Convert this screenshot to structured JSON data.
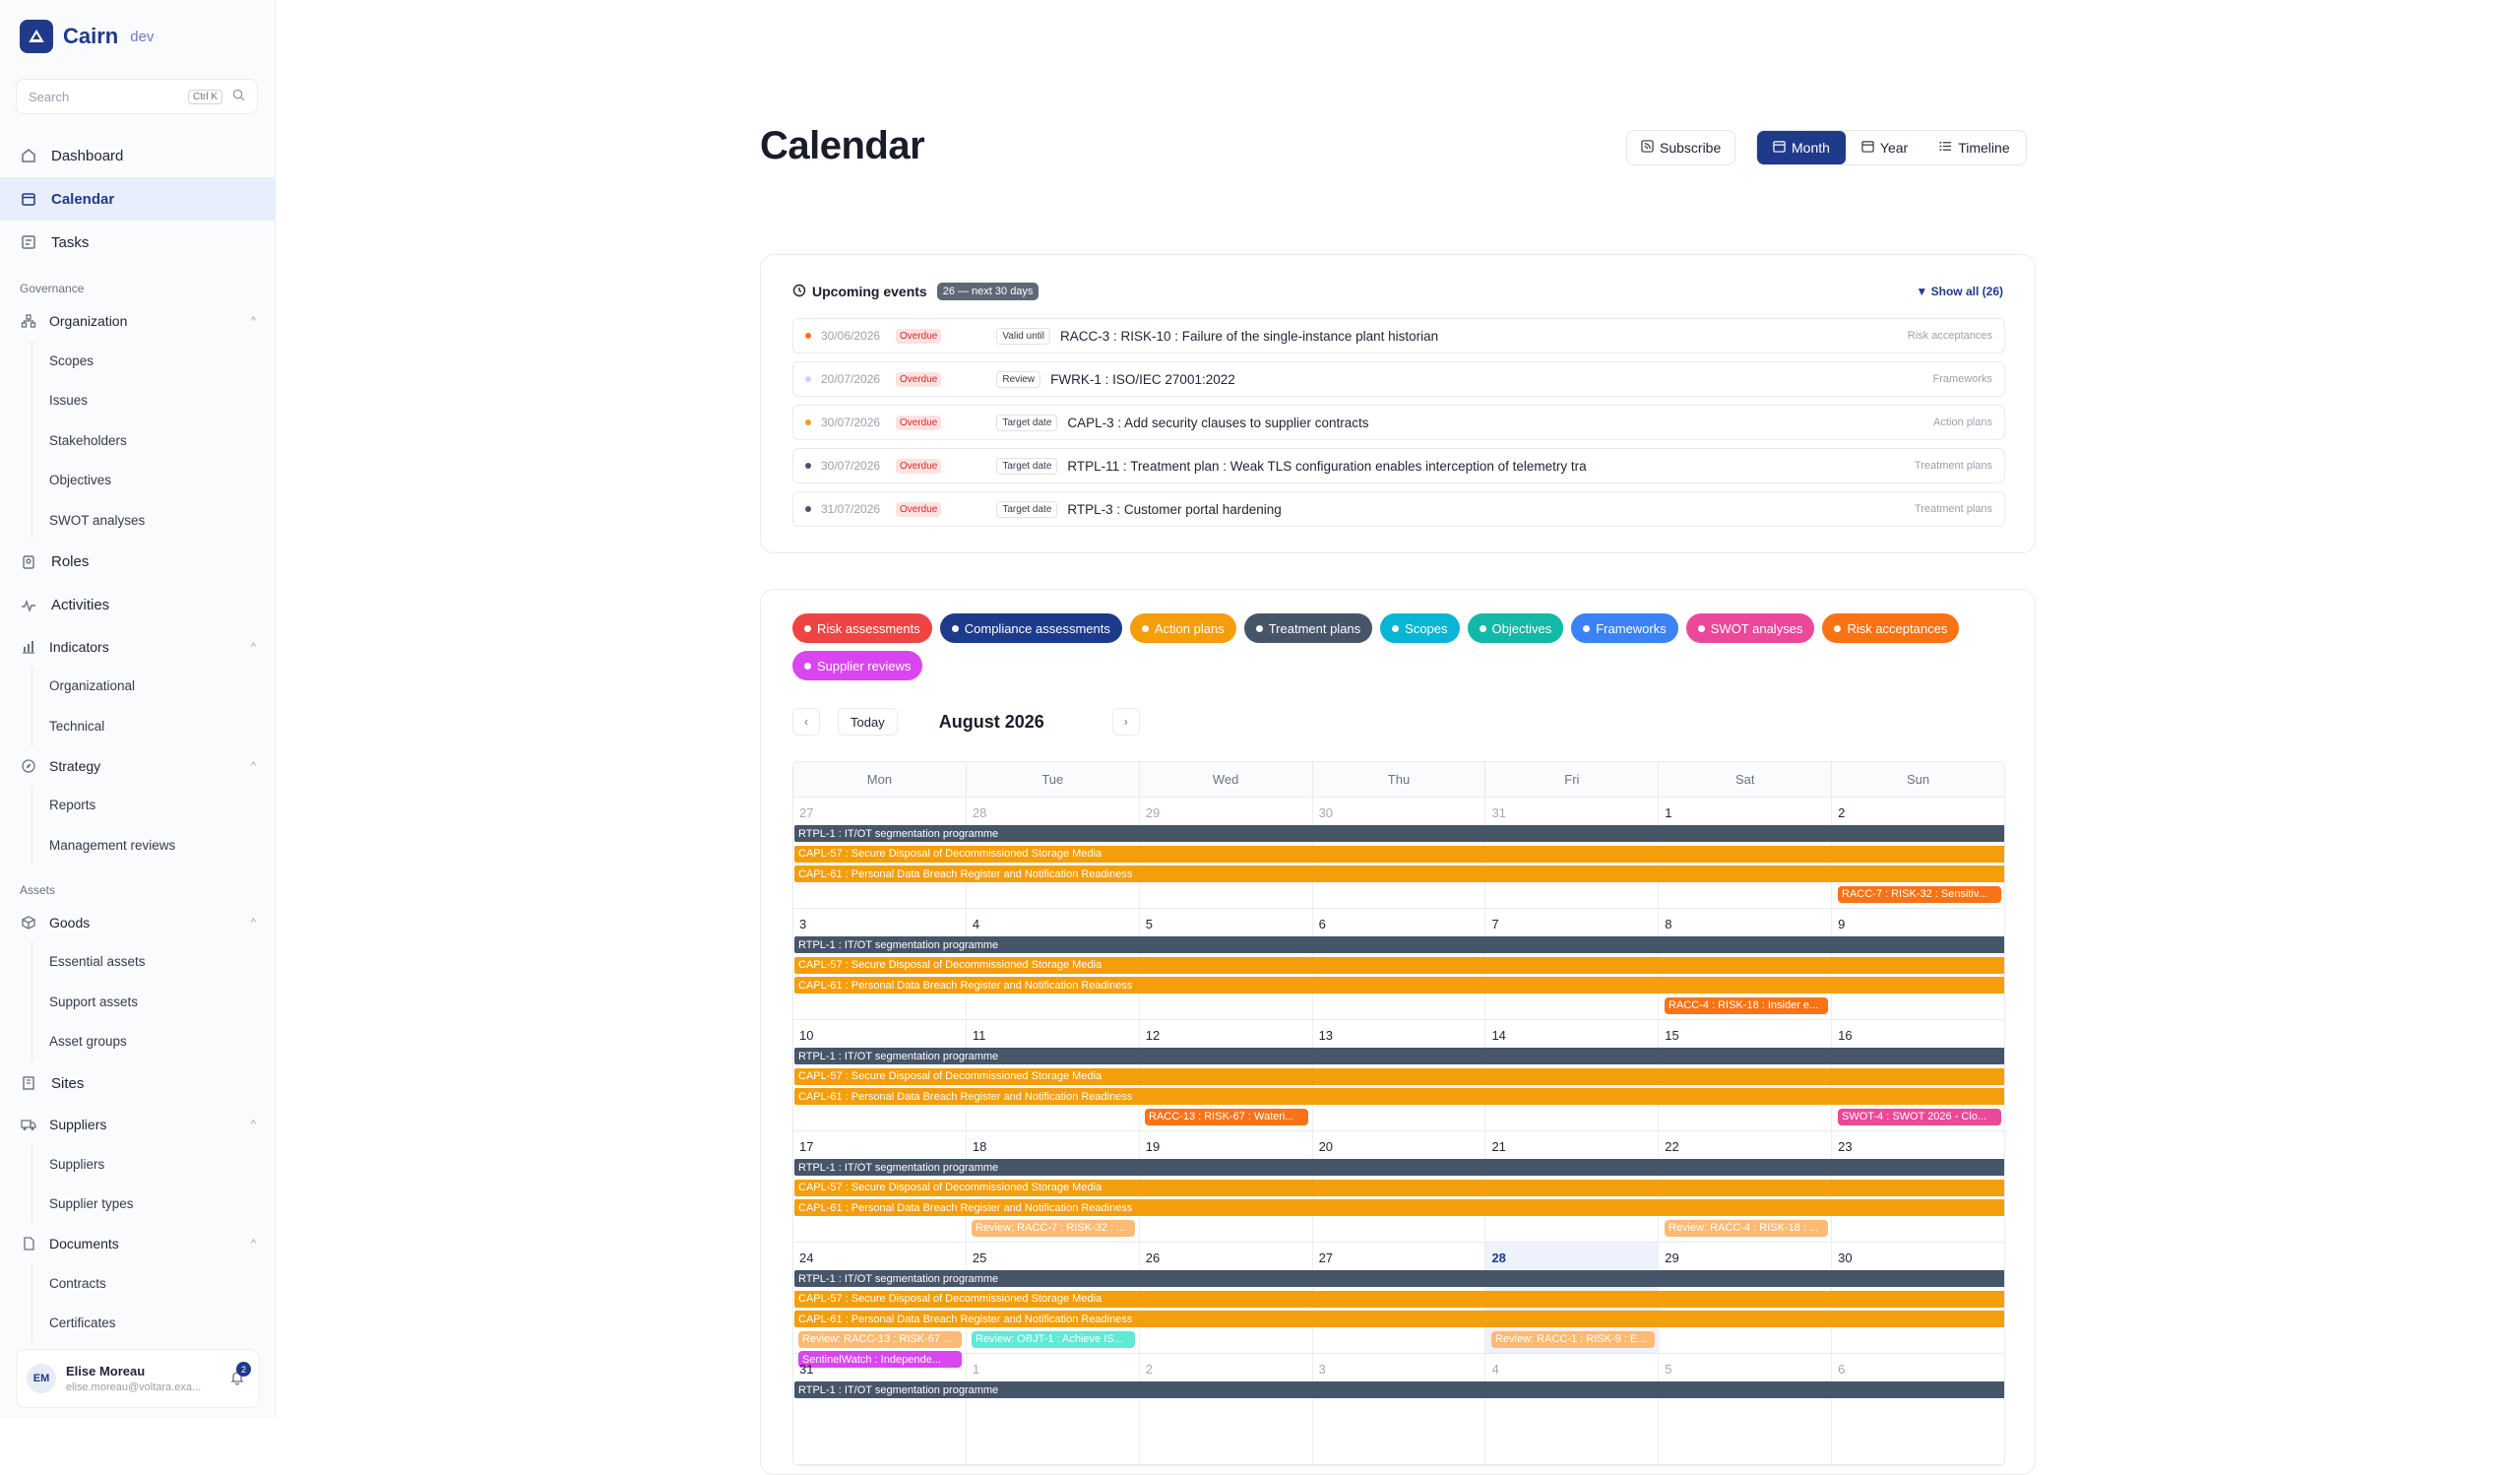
{
  "brand": {
    "name": "Cairn",
    "env": "dev"
  },
  "search": {
    "placeholder": "Search",
    "shortcut": "Ctrl K"
  },
  "nav": {
    "dashboard": "Dashboard",
    "calendar": "Calendar",
    "tasks": "Tasks",
    "governance": "Governance",
    "organization": "Organization",
    "scopes": "Scopes",
    "issues": "Issues",
    "stakeholders": "Stakeholders",
    "objectives": "Objectives",
    "swot": "SWOT analyses",
    "roles": "Roles",
    "activities": "Activities",
    "indicators": "Indicators",
    "organizational": "Organizational",
    "technical": "Technical",
    "strategy": "Strategy",
    "reports": "Reports",
    "management_reviews": "Management reviews",
    "assets": "Assets",
    "goods": "Goods",
    "essential_assets": "Essential assets",
    "support_assets": "Support assets",
    "asset_groups": "Asset groups",
    "sites": "Sites",
    "suppliers_group": "Suppliers",
    "suppliers": "Suppliers",
    "supplier_types": "Supplier types",
    "documents": "Documents",
    "contracts": "Contracts",
    "certificates": "Certificates"
  },
  "user": {
    "initials": "EM",
    "name": "Elise Moreau",
    "email": "elise.moreau@voltara.exa...",
    "notifications": "2"
  },
  "page": {
    "title": "Calendar"
  },
  "toolbar": {
    "subscribe": "Subscribe",
    "month": "Month",
    "year": "Year",
    "timeline": "Timeline"
  },
  "upcoming": {
    "title": "Upcoming events",
    "count": "26 — next 30 days",
    "show_all": "Show all (26)",
    "events": [
      {
        "date": "30/06/2026",
        "status": "Overdue",
        "kind": "Valid until",
        "title": "RACC-3 : RISK-10 : Failure of the single-instance plant historian",
        "source": "Risk acceptances",
        "color": "#f97316"
      },
      {
        "date": "20/07/2026",
        "status": "Overdue",
        "kind": "Review",
        "title": "FWRK-1 : ISO/IEC 27001:2022",
        "source": "Frameworks",
        "color": "#c7d2fe"
      },
      {
        "date": "30/07/2026",
        "status": "Overdue",
        "kind": "Target date",
        "title": "CAPL-3 : Add security clauses to supplier contracts",
        "source": "Action plans",
        "color": "#f59e0b"
      },
      {
        "date": "30/07/2026",
        "status": "Overdue",
        "kind": "Target date",
        "title": "RTPL-11 : Treatment plan : Weak TLS configuration enables interception of telemetry tra",
        "source": "Treatment plans",
        "color": "#475569"
      },
      {
        "date": "31/07/2026",
        "status": "Overdue",
        "kind": "Target date",
        "title": "RTPL-3 : Customer portal hardening",
        "source": "Treatment plans",
        "color": "#475569"
      }
    ]
  },
  "filters": [
    {
      "label": "Risk assessments",
      "color": "#ef4444"
    },
    {
      "label": "Compliance assessments",
      "color": "#1e3a8a"
    },
    {
      "label": "Action plans",
      "color": "#f59e0b"
    },
    {
      "label": "Treatment plans",
      "color": "#475569"
    },
    {
      "label": "Scopes",
      "color": "#06b6d4"
    },
    {
      "label": "Objectives",
      "color": "#14b8a6"
    },
    {
      "label": "Frameworks",
      "color": "#3b82f6"
    },
    {
      "label": "SWOT analyses",
      "color": "#ec4899"
    },
    {
      "label": "Risk acceptances",
      "color": "#f97316"
    },
    {
      "label": "Supplier reviews",
      "color": "#d946ef"
    }
  ],
  "calendar": {
    "today_label": "Today",
    "month_label": "August 2026",
    "weekdays": [
      "Mon",
      "Tue",
      "Wed",
      "Thu",
      "Fri",
      "Sat",
      "Sun"
    ],
    "weeks": [
      {
        "days": [
          "27",
          "28",
          "29",
          "30",
          "31",
          "1",
          "2"
        ]
      },
      {
        "days": [
          "3",
          "4",
          "5",
          "6",
          "7",
          "8",
          "9"
        ]
      },
      {
        "days": [
          "10",
          "11",
          "12",
          "13",
          "14",
          "15",
          "16"
        ]
      },
      {
        "days": [
          "17",
          "18",
          "19",
          "20",
          "21",
          "22",
          "23"
        ]
      },
      {
        "days": [
          "24",
          "25",
          "26",
          "27",
          "28",
          "29",
          "30"
        ]
      },
      {
        "days": [
          "31",
          "1",
          "2",
          "3",
          "4",
          "5",
          "6"
        ]
      }
    ],
    "events": {
      "rtpl1": "RTPL-1 : IT/OT segmentation programme",
      "capl57": "CAPL-57 : Secure Disposal of Decommissioned Storage Media",
      "capl61": "CAPL-61 : Personal Data Breach Register and Notification Readiness",
      "racc7": "RACC-7 : RISK-32 : Sensitiv...",
      "racc4": "RACC-4 : RISK-18 : Insider e...",
      "racc13": "RACC-13 : RISK-67 : Wateri...",
      "swot4": "SWOT-4 : SWOT 2026 - Clo...",
      "rev_racc7": "Review: RACC-7 : RISK-32 : ...",
      "rev_racc4": "Review: RACC-4 : RISK-18 : ...",
      "rev_racc13": "Review: RACC-13 : RISK-67 ...",
      "rev_objt1": "Review: OBJT-1 : Achieve IS...",
      "rev_racc1": "Review: RACC-1 : RISK-9 : E...",
      "sentinel": "SentinelWatch : Independe..."
    }
  }
}
